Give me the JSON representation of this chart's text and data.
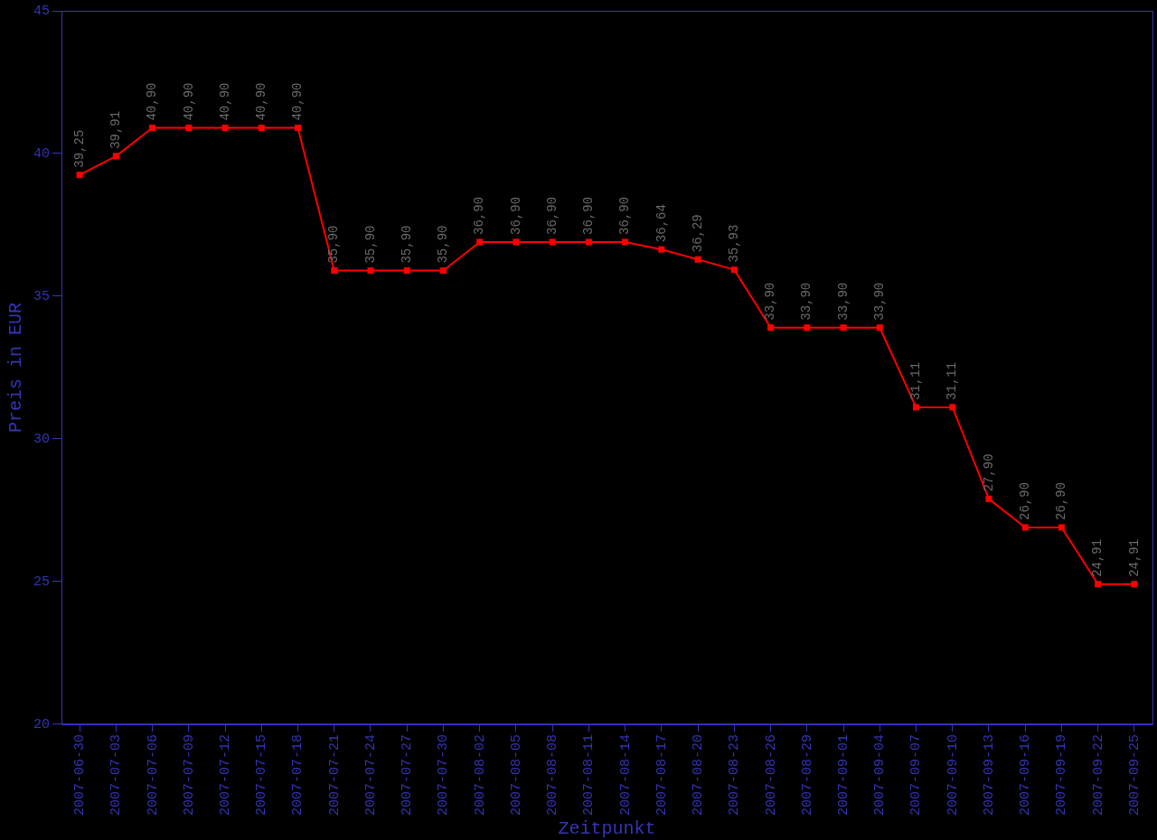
{
  "chart_data": {
    "type": "line",
    "xlabel": "Zeitpunkt",
    "ylabel": "Preis in EUR",
    "categories": [
      "2007-06-30",
      "2007-07-03",
      "2007-07-06",
      "2007-07-09",
      "2007-07-12",
      "2007-07-15",
      "2007-07-18",
      "2007-07-21",
      "2007-07-24",
      "2007-07-27",
      "2007-07-30",
      "2007-08-02",
      "2007-08-05",
      "2007-08-08",
      "2007-08-11",
      "2007-08-14",
      "2007-08-17",
      "2007-08-20",
      "2007-08-23",
      "2007-08-26",
      "2007-08-29",
      "2007-09-01",
      "2007-09-04",
      "2007-09-07",
      "2007-09-10",
      "2007-09-13",
      "2007-09-16",
      "2007-09-19",
      "2007-09-22",
      "2007-09-25"
    ],
    "series": [
      {
        "color": "#ff0000",
        "values": [
          39.25,
          39.91,
          40.9,
          40.9,
          40.9,
          40.9,
          40.9,
          35.9,
          35.9,
          35.9,
          35.9,
          36.9,
          36.9,
          36.9,
          36.9,
          36.9,
          36.64,
          36.29,
          35.93,
          33.9,
          33.9,
          33.9,
          33.9,
          31.11,
          31.11,
          27.9,
          26.9,
          26.9,
          24.91,
          24.91
        ],
        "value_labels": [
          "39,25",
          "39,91",
          "40,90",
          "40,90",
          "40,90",
          "40,90",
          "40,90",
          "35,90",
          "35,90",
          "35,90",
          "35,90",
          "36,90",
          "36,90",
          "36,90",
          "36,90",
          "36,90",
          "36,64",
          "36,29",
          "35,93",
          "33,90",
          "33,90",
          "33,90",
          "33,90",
          "31,11",
          "31,11",
          "27,90",
          "26,90",
          "26,90",
          "24,91",
          "24,91"
        ]
      }
    ],
    "ylim": [
      20,
      45
    ],
    "yticks": [
      20,
      25,
      30,
      35,
      40,
      45
    ],
    "grid": false,
    "legend": false,
    "marker": "square",
    "line_style": "solid"
  }
}
